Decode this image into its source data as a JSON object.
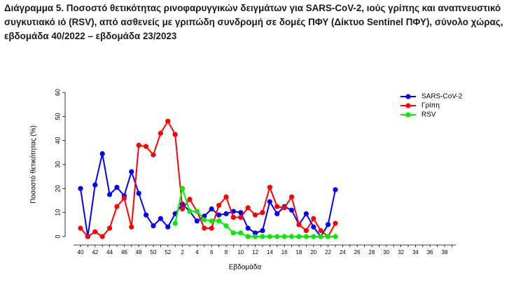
{
  "chart_data": {
    "type": "line",
    "title": "Διάγραμμα 5. Ποσοστό θετικότητας ρινοφαρυγγικών δειγμάτων για SARS-CoV-2, ιούς γρίπης και αναπνευστικό συγκυτιακό ιό (RSV), από ασθενείς με γριπώδη συνδρομή σε δομές ΠΦΥ (Δίκτυο Sentinel ΠΦΥ), σύνολο χώρας, εβδομάδα 40/2022 – εβδομάδα 23/2023",
    "x_label": "Εβδομάδα",
    "y_label": "Ποσοστό θετικότητας (%)",
    "categories": [
      40,
      null,
      42,
      null,
      44,
      null,
      46,
      null,
      48,
      null,
      50,
      null,
      52,
      null,
      2,
      null,
      4,
      null,
      6,
      null,
      8,
      null,
      10,
      null,
      12,
      null,
      14,
      null,
      16,
      null,
      18,
      null,
      20,
      null,
      22,
      null,
      24,
      null,
      26,
      null,
      28,
      null,
      30,
      null,
      32,
      null,
      34,
      null,
      36,
      null,
      38,
      null
    ],
    "series": [
      {
        "name": "SARS-CoV-2",
        "color": "#0000ff",
        "values": [
          20,
          0,
          21.5,
          34.5,
          17.5,
          20.5,
          17,
          27,
          18,
          9,
          4.5,
          7.5,
          4,
          9.5,
          13.5,
          10.5,
          6.5,
          8.5,
          11.5,
          9,
          9.5,
          10.5,
          10,
          3.5,
          1.5,
          2.5,
          14.5,
          9.5,
          12.5,
          11,
          5,
          9.5,
          4,
          0,
          5,
          19.5,
          null,
          null,
          null,
          null,
          null,
          null,
          null,
          null,
          null,
          null,
          null,
          null,
          null,
          null,
          null,
          null
        ]
      },
      {
        "name": "Γρίπη",
        "color": "#ff0000",
        "values": [
          3.5,
          0,
          2,
          0,
          3.5,
          12.5,
          16,
          4,
          38,
          37.5,
          34,
          43,
          48,
          42.5,
          11.5,
          15.5,
          10.5,
          3.5,
          3.5,
          13,
          16.5,
          8,
          8,
          12,
          9,
          10,
          20.5,
          12.5,
          12,
          16.5,
          5,
          2.5,
          7.5,
          2.5,
          0,
          5.5,
          null,
          null,
          null,
          null,
          null,
          null,
          null,
          null,
          null,
          null,
          null,
          null,
          null,
          null,
          null,
          null
        ]
      },
      {
        "name": "RSV",
        "color": "#00ee00",
        "values": [
          null,
          null,
          null,
          null,
          null,
          null,
          null,
          null,
          null,
          null,
          null,
          null,
          null,
          5.5,
          20,
          10.5,
          10.5,
          7,
          6.5,
          6.5,
          4.5,
          1.5,
          1.5,
          0,
          0,
          0,
          0,
          0,
          0,
          0,
          0,
          0,
          0,
          0,
          0,
          0,
          null,
          null,
          null,
          null,
          null,
          null,
          null,
          null,
          null,
          null,
          null,
          null,
          null,
          null,
          null,
          null
        ]
      }
    ],
    "ylim": [
      0,
      60
    ],
    "yticks": [
      0,
      10,
      20,
      30,
      40,
      50,
      60
    ],
    "legend": "top-right"
  }
}
